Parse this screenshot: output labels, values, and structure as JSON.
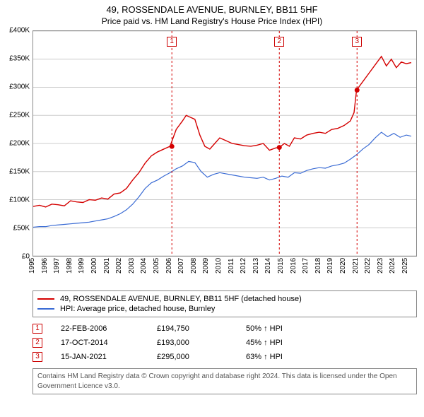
{
  "title": "49, ROSSENDALE AVENUE, BURNLEY, BB11 5HF",
  "subtitle": "Price paid vs. HM Land Registry's House Price Index (HPI)",
  "chart": {
    "type": "line",
    "background_color": "#ffffff",
    "grid_color": "#cccccc",
    "border_color": "#888888",
    "xlim": [
      1995,
      2025.8
    ],
    "ylim": [
      0,
      400000
    ],
    "ytick_step": 50000,
    "yticks": [
      "£0",
      "£50K",
      "£100K",
      "£150K",
      "£200K",
      "£250K",
      "£300K",
      "£350K",
      "£400K"
    ],
    "xticks": [
      "1995",
      "1996",
      "1997",
      "1998",
      "1999",
      "2000",
      "2001",
      "2002",
      "2003",
      "2004",
      "2005",
      "2006",
      "2007",
      "2008",
      "2009",
      "2010",
      "2011",
      "2012",
      "2013",
      "2014",
      "2015",
      "2016",
      "2017",
      "2018",
      "2019",
      "2020",
      "2021",
      "2022",
      "2023",
      "2024",
      "2025"
    ],
    "xtick_rotation_deg": -90,
    "axis_fontsize": 10,
    "title_fontsize": 13,
    "subtitle_fontsize": 12
  },
  "series": {
    "property": {
      "label": "49, ROSSENDALE AVENUE, BURNLEY, BB11 5HF (detached house)",
      "color": "#d40000",
      "line_width": 1.4,
      "data": [
        [
          1995.0,
          88000
        ],
        [
          1995.5,
          90000
        ],
        [
          1996.0,
          87000
        ],
        [
          1996.5,
          92000
        ],
        [
          1997.0,
          91000
        ],
        [
          1997.5,
          89000
        ],
        [
          1998.0,
          98000
        ],
        [
          1998.5,
          96000
        ],
        [
          1999.0,
          95000
        ],
        [
          1999.5,
          100000
        ],
        [
          2000.0,
          99000
        ],
        [
          2000.5,
          103000
        ],
        [
          2001.0,
          101000
        ],
        [
          2001.5,
          110000
        ],
        [
          2002.0,
          112000
        ],
        [
          2002.5,
          120000
        ],
        [
          2003.0,
          135000
        ],
        [
          2003.5,
          148000
        ],
        [
          2004.0,
          165000
        ],
        [
          2004.5,
          178000
        ],
        [
          2005.0,
          185000
        ],
        [
          2005.5,
          190000
        ],
        [
          2006.0,
          195000
        ],
        [
          2006.5,
          225000
        ],
        [
          2007.0,
          240000
        ],
        [
          2007.3,
          250000
        ],
        [
          2007.6,
          247000
        ],
        [
          2008.0,
          243000
        ],
        [
          2008.4,
          215000
        ],
        [
          2008.8,
          195000
        ],
        [
          2009.2,
          190000
        ],
        [
          2009.6,
          200000
        ],
        [
          2010.0,
          210000
        ],
        [
          2010.5,
          205000
        ],
        [
          2011.0,
          200000
        ],
        [
          2011.5,
          198000
        ],
        [
          2012.0,
          196000
        ],
        [
          2012.5,
          195000
        ],
        [
          2013.0,
          197000
        ],
        [
          2013.5,
          200000
        ],
        [
          2014.0,
          188000
        ],
        [
          2014.5,
          192000
        ],
        [
          2014.8,
          193000
        ],
        [
          2015.2,
          200000
        ],
        [
          2015.6,
          195000
        ],
        [
          2016.0,
          210000
        ],
        [
          2016.5,
          208000
        ],
        [
          2017.0,
          215000
        ],
        [
          2017.5,
          218000
        ],
        [
          2018.0,
          220000
        ],
        [
          2018.5,
          218000
        ],
        [
          2019.0,
          225000
        ],
        [
          2019.5,
          227000
        ],
        [
          2020.0,
          232000
        ],
        [
          2020.5,
          240000
        ],
        [
          2020.8,
          255000
        ],
        [
          2021.0,
          295000
        ],
        [
          2021.5,
          310000
        ],
        [
          2022.0,
          325000
        ],
        [
          2022.5,
          340000
        ],
        [
          2023.0,
          355000
        ],
        [
          2023.4,
          338000
        ],
        [
          2023.8,
          350000
        ],
        [
          2024.2,
          335000
        ],
        [
          2024.6,
          345000
        ],
        [
          2025.0,
          342000
        ],
        [
          2025.4,
          344000
        ]
      ]
    },
    "hpi": {
      "label": "HPI: Average price, detached house, Burnley",
      "color": "#3a6bd4",
      "line_width": 1.2,
      "data": [
        [
          1995.0,
          51000
        ],
        [
          1995.5,
          52000
        ],
        [
          1996.0,
          52000
        ],
        [
          1996.5,
          54000
        ],
        [
          1997.0,
          55000
        ],
        [
          1997.5,
          56000
        ],
        [
          1998.0,
          57000
        ],
        [
          1998.5,
          58000
        ],
        [
          1999.0,
          59000
        ],
        [
          1999.5,
          60000
        ],
        [
          2000.0,
          62000
        ],
        [
          2000.5,
          64000
        ],
        [
          2001.0,
          66000
        ],
        [
          2001.5,
          70000
        ],
        [
          2002.0,
          75000
        ],
        [
          2002.5,
          82000
        ],
        [
          2003.0,
          92000
        ],
        [
          2003.5,
          105000
        ],
        [
          2004.0,
          120000
        ],
        [
          2004.5,
          130000
        ],
        [
          2005.0,
          135000
        ],
        [
          2005.5,
          142000
        ],
        [
          2006.0,
          148000
        ],
        [
          2006.5,
          155000
        ],
        [
          2007.0,
          160000
        ],
        [
          2007.5,
          168000
        ],
        [
          2008.0,
          166000
        ],
        [
          2008.5,
          150000
        ],
        [
          2009.0,
          140000
        ],
        [
          2009.5,
          145000
        ],
        [
          2010.0,
          148000
        ],
        [
          2010.5,
          146000
        ],
        [
          2011.0,
          144000
        ],
        [
          2011.5,
          142000
        ],
        [
          2012.0,
          140000
        ],
        [
          2012.5,
          139000
        ],
        [
          2013.0,
          138000
        ],
        [
          2013.5,
          140000
        ],
        [
          2014.0,
          135000
        ],
        [
          2014.5,
          138000
        ],
        [
          2015.0,
          142000
        ],
        [
          2015.5,
          140000
        ],
        [
          2016.0,
          148000
        ],
        [
          2016.5,
          147000
        ],
        [
          2017.0,
          152000
        ],
        [
          2017.5,
          155000
        ],
        [
          2018.0,
          157000
        ],
        [
          2018.5,
          156000
        ],
        [
          2019.0,
          160000
        ],
        [
          2019.5,
          162000
        ],
        [
          2020.0,
          165000
        ],
        [
          2020.5,
          172000
        ],
        [
          2021.0,
          180000
        ],
        [
          2021.5,
          190000
        ],
        [
          2022.0,
          198000
        ],
        [
          2022.5,
          210000
        ],
        [
          2023.0,
          220000
        ],
        [
          2023.5,
          212000
        ],
        [
          2024.0,
          218000
        ],
        [
          2024.5,
          211000
        ],
        [
          2025.0,
          215000
        ],
        [
          2025.4,
          213000
        ]
      ]
    }
  },
  "sale_markers": [
    {
      "n": "1",
      "x": 2006.15,
      "y": 194750,
      "date": "22-FEB-2006",
      "price": "£194,750",
      "rel": "50% ↑ HPI"
    },
    {
      "n": "2",
      "x": 2014.79,
      "y": 193000,
      "date": "17-OCT-2014",
      "price": "£193,000",
      "rel": "45% ↑ HPI"
    },
    {
      "n": "3",
      "x": 2021.04,
      "y": 295000,
      "date": "15-JAN-2021",
      "price": "£295,000",
      "rel": "63% ↑ HPI"
    }
  ],
  "marker_style": {
    "vline_color": "#d40000",
    "vline_dash": "3,3",
    "vline_width": 1,
    "dot_color": "#d40000",
    "dot_radius": 3.5,
    "label_border": "#d40000",
    "label_text_color": "#d40000",
    "label_fontsize": 10
  },
  "legend": {
    "border_color": "#888888",
    "fontsize": 11
  },
  "attribution": "Contains HM Land Registry data © Crown copyright and database right 2024. This data is licensed under the Open Government Licence v3.0."
}
